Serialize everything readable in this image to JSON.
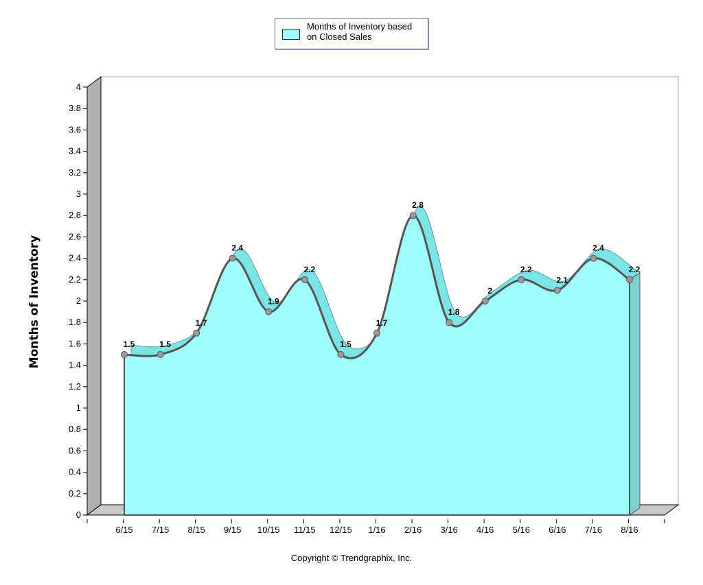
{
  "chart_data": {
    "type": "area",
    "categories": [
      "6/15",
      "7/15",
      "8/15",
      "9/15",
      "10/15",
      "11/15",
      "12/15",
      "1/16",
      "2/16",
      "3/16",
      "4/16",
      "5/16",
      "6/16",
      "7/16",
      "8/16"
    ],
    "series": [
      {
        "name": "Months of Inventory based on Closed Sales",
        "values": [
          1.5,
          1.5,
          1.7,
          2.4,
          1.9,
          2.2,
          1.5,
          1.7,
          2.8,
          1.8,
          2.0,
          2.2,
          2.1,
          2.4,
          2.2
        ],
        "labels": [
          "1.5",
          "1.5",
          "1.7",
          "2.4",
          "1.9",
          "2.2",
          "1.5",
          "1.7",
          "2.8",
          "1.8",
          "2",
          "2.2",
          "2.1",
          "2.4",
          "2.2"
        ]
      }
    ],
    "yticks": [
      "0",
      "0.2",
      "0.4",
      "0.6",
      "0.8",
      "1",
      "1.2",
      "1.4",
      "1.6",
      "1.8",
      "2",
      "2.2",
      "2.4",
      "2.6",
      "2.8",
      "3",
      "3.2",
      "3.4",
      "3.6",
      "3.8",
      "4"
    ],
    "ylim": [
      0,
      4
    ],
    "ylabel": "Months of Inventory",
    "legend_position": "top-center",
    "grid": false
  },
  "colors": {
    "fill": "#9ffcff",
    "ribbon": "#7ae4e6",
    "line": "#555555",
    "marker": "#9a9a9a",
    "floor": "#c8c8c8",
    "wall": "#b0b0b0"
  },
  "legend": {
    "label": "Months of Inventory based on Closed Sales"
  },
  "footer": {
    "copyright": "Copyright © Trendgraphix, Inc."
  }
}
